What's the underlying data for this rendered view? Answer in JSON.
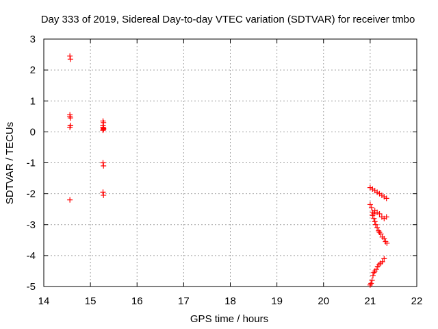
{
  "chart_data": {
    "type": "scatter",
    "title": "Day 333 of 2019, Sidereal Day-to-day VTEC variation (SDTVAR) for receiver tmbo",
    "xlabel": "GPS time / hours",
    "ylabel": "SDTVAR / TECUs",
    "xlim": [
      14,
      22
    ],
    "ylim": [
      -5,
      3
    ],
    "xticks": [
      "14",
      "15",
      "16",
      "17",
      "18",
      "19",
      "20",
      "21",
      "22"
    ],
    "yticks": [
      "-5",
      "-4",
      "-3",
      "-2",
      "-1",
      "0",
      "1",
      "2",
      "3"
    ],
    "grid": true,
    "marker": "plus",
    "color": "#ff0000",
    "series": [
      {
        "x": [
          14.56,
          14.57,
          14.56,
          14.57,
          14.56,
          14.57,
          14.56,
          14.57,
          14.56,
          15.27,
          15.28,
          15.27,
          15.28,
          15.27,
          15.28,
          15.27,
          15.28,
          15.27,
          15.28,
          15.27,
          15.28,
          21.0,
          21.05,
          21.1,
          21.15,
          21.2,
          21.25,
          21.3,
          21.35,
          21.0,
          21.03,
          21.05,
          21.08,
          21.1,
          21.15,
          21.2,
          21.25,
          21.3,
          21.35,
          21.05,
          21.08,
          21.1,
          21.12,
          21.15,
          21.18,
          21.2,
          21.23,
          21.26,
          21.3,
          21.33,
          21.36,
          21.0,
          21.02,
          21.04,
          21.06,
          21.08,
          21.1,
          21.13,
          21.16,
          21.19,
          21.22,
          21.26,
          21.3
        ],
        "y": [
          2.45,
          2.35,
          0.55,
          0.45,
          0.5,
          0.2,
          0.15,
          0.2,
          -2.2,
          0.35,
          0.3,
          0.15,
          0.1,
          0.05,
          0.12,
          -1.0,
          -1.1,
          -1.95,
          -2.05,
          0.2,
          0.08,
          -1.8,
          -1.85,
          -1.9,
          -1.95,
          -2.0,
          -2.05,
          -2.1,
          -2.15,
          -2.35,
          -2.45,
          -2.6,
          -2.65,
          -2.55,
          -2.6,
          -2.65,
          -2.75,
          -2.8,
          -2.75,
          -2.7,
          -2.8,
          -2.9,
          -3.0,
          -3.1,
          -3.2,
          -3.25,
          -3.3,
          -3.4,
          -3.45,
          -3.55,
          -3.6,
          -4.95,
          -4.9,
          -4.8,
          -4.65,
          -4.55,
          -4.5,
          -4.45,
          -4.35,
          -4.3,
          -4.25,
          -4.2,
          -4.1
        ]
      }
    ]
  }
}
